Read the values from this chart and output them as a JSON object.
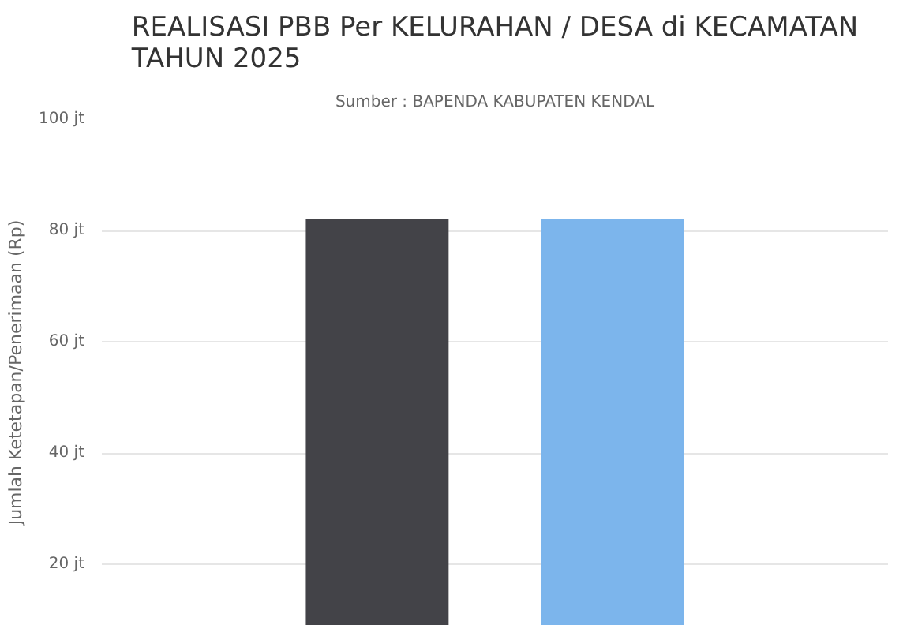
{
  "chart_data": {
    "type": "bar",
    "title": "REALISASI PBB Per KELURAHAN / DESA di KECAMATAN\nTAHUN 2025",
    "subtitle": "Sumber : BAPENDA KABUPATEN KENDAL",
    "ylabel": "Jumlah Ketetapan/Penerimaan (Rp)",
    "categories": [
      null,
      null
    ],
    "values": [
      82,
      82
    ],
    "colors": [
      "#434348",
      "#7cb5ec"
    ],
    "ylim": [
      9,
      100
    ],
    "yticks": [
      {
        "value": 20,
        "label": "20 jt"
      },
      {
        "value": 40,
        "label": "40 jt"
      },
      {
        "value": 60,
        "label": "60 jt"
      },
      {
        "value": 80,
        "label": "80 jt"
      },
      {
        "value": 100,
        "label": "100 jt"
      }
    ],
    "grid": "y",
    "tick_labels": "y"
  }
}
